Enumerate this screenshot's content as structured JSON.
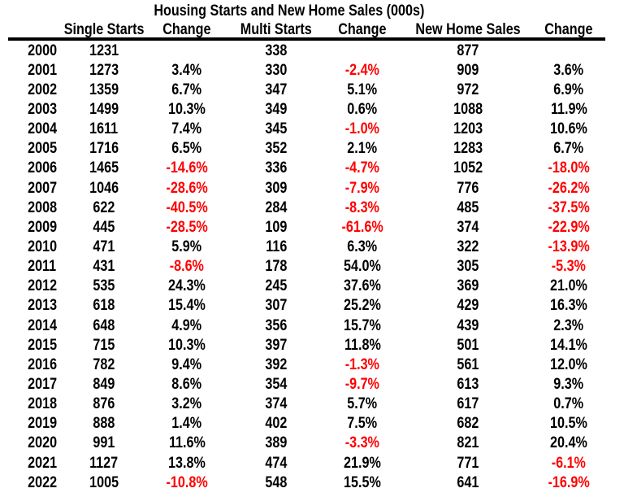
{
  "chart_data": {
    "type": "table",
    "title": "Housing Starts and New Home Sales (000s)",
    "columns": [
      "",
      "Single Starts",
      "Change",
      "Multi Starts",
      "Change",
      "New Home Sales",
      "Change"
    ],
    "rows": [
      [
        "2000",
        "1231",
        "",
        "338",
        "",
        "877",
        ""
      ],
      [
        "2001",
        "1273",
        "3.4%",
        "330",
        "-2.4%",
        "909",
        "3.6%"
      ],
      [
        "2002",
        "1359",
        "6.7%",
        "347",
        "5.1%",
        "972",
        "6.9%"
      ],
      [
        "2003",
        "1499",
        "10.3%",
        "349",
        "0.6%",
        "1088",
        "11.9%"
      ],
      [
        "2004",
        "1611",
        "7.4%",
        "345",
        "-1.0%",
        "1203",
        "10.6%"
      ],
      [
        "2005",
        "1716",
        "6.5%",
        "352",
        "2.1%",
        "1283",
        "6.7%"
      ],
      [
        "2006",
        "1465",
        "-14.6%",
        "336",
        "-4.7%",
        "1052",
        "-18.0%"
      ],
      [
        "2007",
        "1046",
        "-28.6%",
        "309",
        "-7.9%",
        "776",
        "-26.2%"
      ],
      [
        "2008",
        "622",
        "-40.5%",
        "284",
        "-8.3%",
        "485",
        "-37.5%"
      ],
      [
        "2009",
        "445",
        "-28.5%",
        "109",
        "-61.6%",
        "374",
        "-22.9%"
      ],
      [
        "2010",
        "471",
        "5.9%",
        "116",
        "6.3%",
        "322",
        "-13.9%"
      ],
      [
        "2011",
        "431",
        "-8.6%",
        "178",
        "54.0%",
        "305",
        "-5.3%"
      ],
      [
        "2012",
        "535",
        "24.3%",
        "245",
        "37.6%",
        "369",
        "21.0%"
      ],
      [
        "2013",
        "618",
        "15.4%",
        "307",
        "25.2%",
        "429",
        "16.3%"
      ],
      [
        "2014",
        "648",
        "4.9%",
        "356",
        "15.7%",
        "439",
        "2.3%"
      ],
      [
        "2015",
        "715",
        "10.3%",
        "397",
        "11.8%",
        "501",
        "14.1%"
      ],
      [
        "2016",
        "782",
        "9.4%",
        "392",
        "-1.3%",
        "561",
        "12.0%"
      ],
      [
        "2017",
        "849",
        "8.6%",
        "354",
        "-9.7%",
        "613",
        "9.3%"
      ],
      [
        "2018",
        "876",
        "3.2%",
        "374",
        "5.7%",
        "617",
        "0.7%"
      ],
      [
        "2019",
        "888",
        "1.4%",
        "402",
        "7.5%",
        "682",
        "10.5%"
      ],
      [
        "2020",
        "991",
        "11.6%",
        "389",
        "-3.3%",
        "821",
        "20.4%"
      ],
      [
        "2021",
        "1127",
        "13.8%",
        "474",
        "21.9%",
        "771",
        "-6.1%"
      ],
      [
        "2022",
        "1005",
        "-10.8%",
        "548",
        "15.5%",
        "641",
        "-16.9%"
      ]
    ],
    "layout": {
      "negative_values_shown_in_red": true,
      "gridlines": "none",
      "header_divider": "thick-black-line"
    }
  },
  "colors": {
    "text": "#000000",
    "negative": "#FF0000",
    "background": "#FFFFFF",
    "rule": "#000000"
  }
}
